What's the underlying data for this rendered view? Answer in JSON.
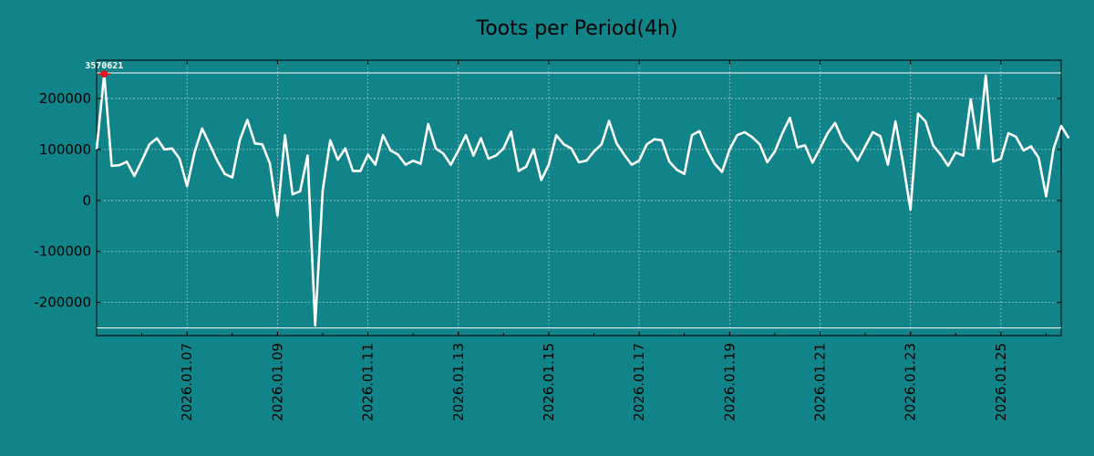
{
  "chart_data": {
    "type": "line",
    "title": "Toots per Period(4h)",
    "xlabel": "",
    "ylabel": "",
    "x_start": "2026-01-05 12:00",
    "x_end": "2026-01-26 20:00",
    "ylim": [
      -265000,
      275000
    ],
    "y_ticks": [
      200000,
      100000,
      0,
      -100000,
      -200000
    ],
    "y_tick_labels": [
      "200000",
      "100000",
      "0",
      "-100000",
      "-200000"
    ],
    "x_tick_labels": [
      "2026.01.07",
      "2026.01.09",
      "2026.01.11",
      "2026.01.13",
      "2026.01.15",
      "2026.01.17",
      "2026.01.19",
      "2026.01.21",
      "2026.01.23",
      "2026.01.25"
    ],
    "grid": true,
    "upper_limit_line": 250000,
    "lower_limit_line": -250000,
    "annotation": {
      "text": "3570621",
      "x": "2026-01-05 16:00",
      "y": 248000
    },
    "series": [
      {
        "color": "#ffffff",
        "points": [
          [
            "2026-01-05 12:00",
            100000
          ],
          [
            "2026-01-05 16:00",
            248000
          ],
          [
            "2026-01-05 20:00",
            68000
          ],
          [
            "2026-01-06 00:00",
            69000
          ],
          [
            "2026-01-06 04:00",
            76000
          ],
          [
            "2026-01-06 08:00",
            48000
          ],
          [
            "2026-01-06 12:00",
            78000
          ],
          [
            "2026-01-06 16:00",
            110000
          ],
          [
            "2026-01-06 20:00",
            122000
          ],
          [
            "2026-01-07 00:00",
            100000
          ],
          [
            "2026-01-07 04:00",
            102000
          ],
          [
            "2026-01-07 08:00",
            82000
          ],
          [
            "2026-01-07 12:00",
            28000
          ],
          [
            "2026-01-07 16:00",
            95000
          ],
          [
            "2026-01-07 20:00",
            141000
          ],
          [
            "2026-01-08 00:00",
            110000
          ],
          [
            "2026-01-08 04:00",
            78000
          ],
          [
            "2026-01-08 08:00",
            52000
          ],
          [
            "2026-01-08 12:00",
            45000
          ],
          [
            "2026-01-08 16:00",
            118000
          ],
          [
            "2026-01-08 20:00",
            158000
          ],
          [
            "2026-01-09 00:00",
            112000
          ],
          [
            "2026-01-09 04:00",
            110000
          ],
          [
            "2026-01-09 08:00",
            72000
          ],
          [
            "2026-01-09 12:00",
            -30000
          ],
          [
            "2026-01-09 16:00",
            128000
          ],
          [
            "2026-01-09 20:00",
            12000
          ],
          [
            "2026-01-10 00:00",
            18000
          ],
          [
            "2026-01-10 04:00",
            88000
          ],
          [
            "2026-01-10 08:00",
            -245000
          ],
          [
            "2026-01-10 12:00",
            20000
          ],
          [
            "2026-01-10 16:00",
            118000
          ],
          [
            "2026-01-10 20:00",
            80000
          ],
          [
            "2026-01-11 00:00",
            102000
          ],
          [
            "2026-01-11 04:00",
            58000
          ],
          [
            "2026-01-11 08:00",
            58000
          ],
          [
            "2026-01-11 12:00",
            90000
          ],
          [
            "2026-01-11 16:00",
            70000
          ],
          [
            "2026-01-11 20:00",
            128000
          ],
          [
            "2026-01-12 00:00",
            98000
          ],
          [
            "2026-01-12 04:00",
            90000
          ],
          [
            "2026-01-12 08:00",
            70000
          ],
          [
            "2026-01-12 12:00",
            78000
          ],
          [
            "2026-01-12 16:00",
            72000
          ],
          [
            "2026-01-12 20:00",
            150000
          ],
          [
            "2026-01-13 00:00",
            102000
          ],
          [
            "2026-01-13 04:00",
            92000
          ],
          [
            "2026-01-13 08:00",
            70000
          ],
          [
            "2026-01-13 12:00",
            98000
          ],
          [
            "2026-01-13 16:00",
            128000
          ],
          [
            "2026-01-13 20:00",
            88000
          ],
          [
            "2026-01-14 00:00",
            122000
          ],
          [
            "2026-01-14 04:00",
            82000
          ],
          [
            "2026-01-14 08:00",
            88000
          ],
          [
            "2026-01-14 12:00",
            102000
          ],
          [
            "2026-01-14 16:00",
            135000
          ],
          [
            "2026-01-14 20:00",
            58000
          ],
          [
            "2026-01-15 00:00",
            66000
          ],
          [
            "2026-01-15 04:00",
            100000
          ],
          [
            "2026-01-15 08:00",
            40000
          ],
          [
            "2026-01-15 12:00",
            70000
          ],
          [
            "2026-01-15 16:00",
            128000
          ],
          [
            "2026-01-15 20:00",
            110000
          ],
          [
            "2026-01-16 00:00",
            102000
          ],
          [
            "2026-01-16 04:00",
            75000
          ],
          [
            "2026-01-16 08:00",
            78000
          ],
          [
            "2026-01-16 12:00",
            96000
          ],
          [
            "2026-01-16 16:00",
            110000
          ],
          [
            "2026-01-16 20:00",
            156000
          ],
          [
            "2026-01-17 00:00",
            112000
          ],
          [
            "2026-01-17 04:00",
            90000
          ],
          [
            "2026-01-17 08:00",
            70000
          ],
          [
            "2026-01-17 12:00",
            78000
          ],
          [
            "2026-01-17 16:00",
            110000
          ],
          [
            "2026-01-17 20:00",
            120000
          ],
          [
            "2026-01-18 00:00",
            118000
          ],
          [
            "2026-01-18 04:00",
            76000
          ],
          [
            "2026-01-18 08:00",
            60000
          ],
          [
            "2026-01-18 12:00",
            52000
          ],
          [
            "2026-01-18 16:00",
            128000
          ],
          [
            "2026-01-18 20:00",
            136000
          ],
          [
            "2026-01-19 00:00",
            100000
          ],
          [
            "2026-01-19 04:00",
            72000
          ],
          [
            "2026-01-19 08:00",
            56000
          ],
          [
            "2026-01-19 12:00",
            100000
          ],
          [
            "2026-01-19 16:00",
            128000
          ],
          [
            "2026-01-19 20:00",
            134000
          ],
          [
            "2026-01-20 00:00",
            124000
          ],
          [
            "2026-01-20 04:00",
            110000
          ],
          [
            "2026-01-20 08:00",
            75000
          ],
          [
            "2026-01-20 12:00",
            96000
          ],
          [
            "2026-01-20 16:00",
            132000
          ],
          [
            "2026-01-20 20:00",
            162000
          ],
          [
            "2026-01-21 00:00",
            104000
          ],
          [
            "2026-01-21 04:00",
            108000
          ],
          [
            "2026-01-21 08:00",
            74000
          ],
          [
            "2026-01-21 12:00",
            102000
          ],
          [
            "2026-01-21 16:00",
            132000
          ],
          [
            "2026-01-21 20:00",
            152000
          ],
          [
            "2026-01-22 00:00",
            118000
          ],
          [
            "2026-01-22 04:00",
            100000
          ],
          [
            "2026-01-22 08:00",
            78000
          ],
          [
            "2026-01-22 12:00",
            106000
          ],
          [
            "2026-01-22 16:00",
            134000
          ],
          [
            "2026-01-22 20:00",
            126000
          ],
          [
            "2026-01-23 00:00",
            70000
          ],
          [
            "2026-01-23 04:00",
            155000
          ],
          [
            "2026-01-23 08:00",
            75000
          ],
          [
            "2026-01-23 12:00",
            -18000
          ],
          [
            "2026-01-23 16:00",
            170000
          ],
          [
            "2026-01-23 20:00",
            155000
          ],
          [
            "2026-01-24 00:00",
            108000
          ],
          [
            "2026-01-24 04:00",
            90000
          ],
          [
            "2026-01-24 08:00",
            68000
          ],
          [
            "2026-01-24 12:00",
            94000
          ],
          [
            "2026-01-24 16:00",
            88000
          ],
          [
            "2026-01-24 20:00",
            198000
          ],
          [
            "2026-01-25 00:00",
            102000
          ],
          [
            "2026-01-25 04:00",
            245000
          ],
          [
            "2026-01-25 08:00",
            76000
          ],
          [
            "2026-01-25 12:00",
            82000
          ],
          [
            "2026-01-25 16:00",
            132000
          ],
          [
            "2026-01-25 20:00",
            125000
          ],
          [
            "2026-01-26 00:00",
            98000
          ],
          [
            "2026-01-26 04:00",
            106000
          ],
          [
            "2026-01-26 08:00",
            84000
          ],
          [
            "2026-01-26 12:00",
            8000
          ],
          [
            "2026-01-26 16:00",
            102000
          ],
          [
            "2026-01-26 20:00",
            146000
          ],
          [
            "2026-01-27 00:00",
            122000
          ]
        ]
      }
    ]
  }
}
